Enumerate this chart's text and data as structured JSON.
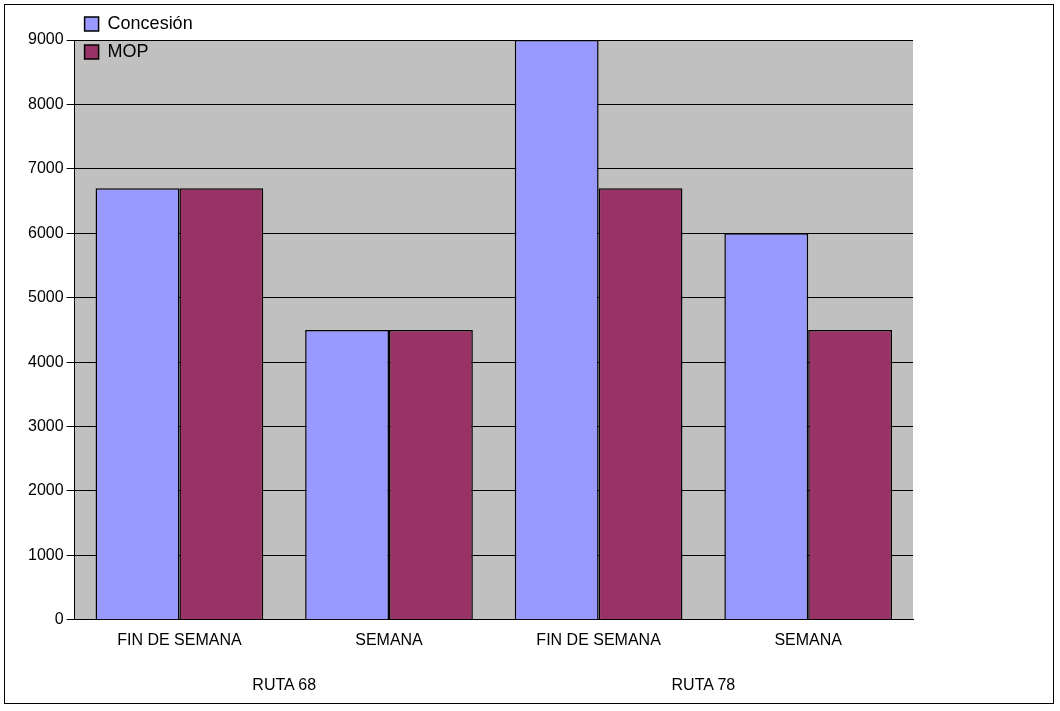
{
  "chart_data": {
    "type": "bar",
    "categories": [
      "FIN DE SEMANA",
      "SEMANA",
      "FIN DE SEMANA",
      "SEMANA"
    ],
    "series": [
      {
        "name": "Concesión",
        "color": "#9999ff",
        "values": [
          6700,
          4500,
          9000,
          6000
        ]
      },
      {
        "name": "MOP",
        "color": "#993366",
        "values": [
          6700,
          4500,
          6700,
          4500
        ]
      }
    ],
    "ylim": [
      0,
      9000
    ],
    "yticks": [
      0,
      1000,
      2000,
      3000,
      4000,
      5000,
      6000,
      7000,
      8000,
      9000
    ],
    "grid": "y",
    "legend": "top left",
    "annotations": [
      "RUTA 68",
      "RUTA 78"
    ]
  }
}
